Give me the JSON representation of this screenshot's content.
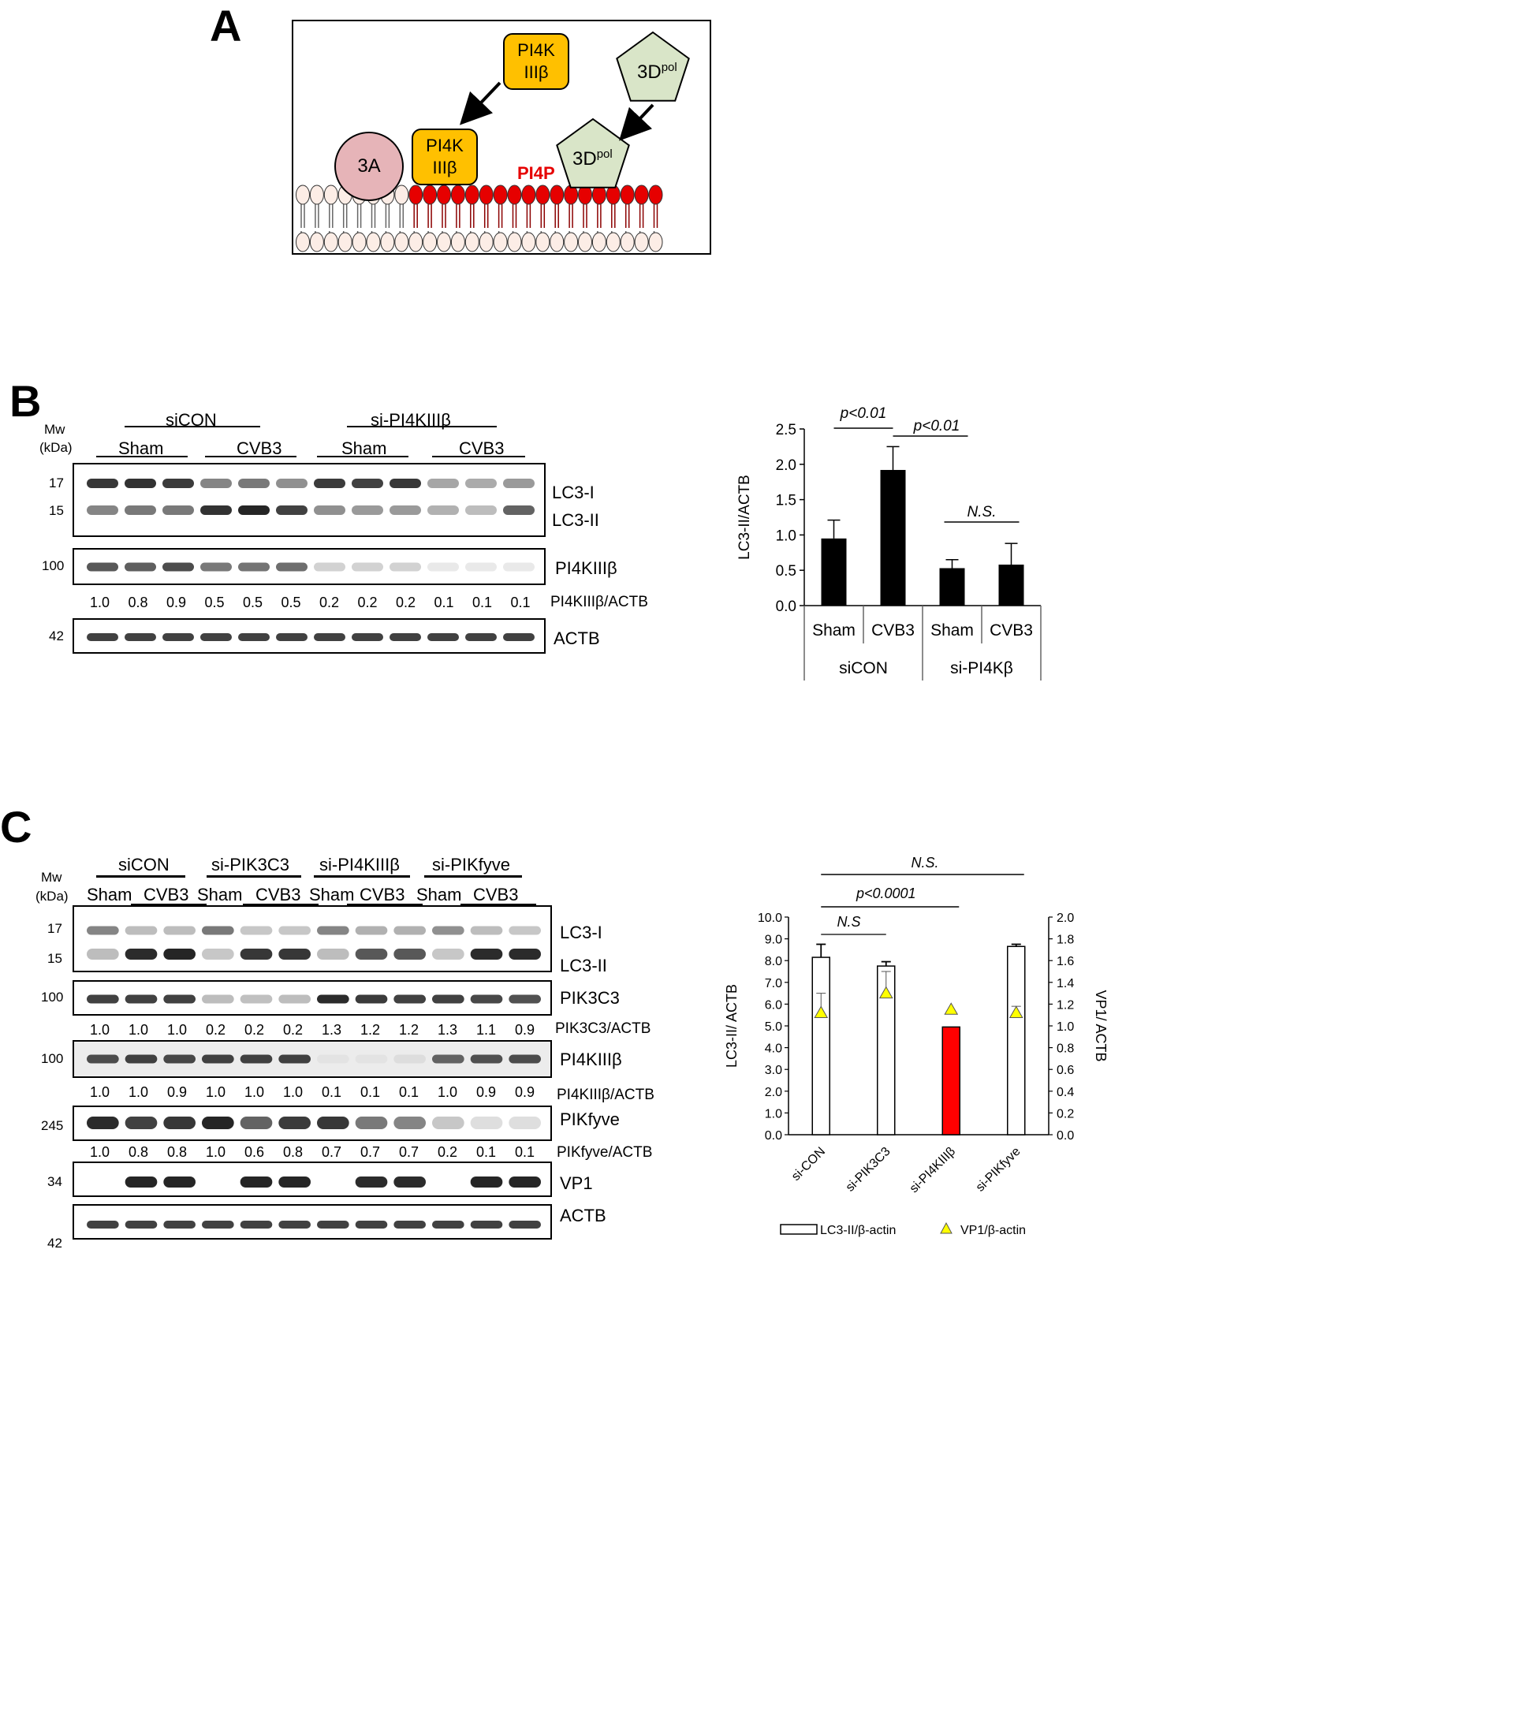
{
  "panels": {
    "a": "A",
    "b": "B",
    "c": "C"
  },
  "panel_a": {
    "pi4k_line1": "PI4K",
    "pi4k_line2": "IIIβ",
    "pol_base": "3D",
    "pol_sup": "pol",
    "protein_3a": "3A",
    "pi4p": "PI4P",
    "colors": {
      "pi4k": "#FFC000",
      "pol": "#D9E5C8",
      "protein_3a": "#E6B4B8",
      "pi4p": "#E60000",
      "lipid": "#FCEDE6"
    }
  },
  "panel_b": {
    "mw_title": "Mw",
    "mw_unit": "(kDa)",
    "group_sicon": "siCON",
    "group_sipi4k": "si-PI4KIIIβ",
    "sham": "Sham",
    "cvb3": "CVB3",
    "mw_17": "17",
    "mw_15": "15",
    "mw_100": "100",
    "mw_42": "42",
    "lc3_i": "LC3-I",
    "lc3_ii": "LC3-II",
    "pi4k_label": "PI4KIIIβ",
    "ratio_label": "PI4KIIIβ/ACTB",
    "ratios": [
      "1.0",
      "0.8",
      "0.9",
      "0.5",
      "0.5",
      "0.5",
      "0.2",
      "0.2",
      "0.2",
      "0.1",
      "0.1",
      "0.1"
    ],
    "actb_label": "ACTB",
    "lc3i_intensity": [
      0.9,
      0.92,
      0.88,
      0.55,
      0.6,
      0.5,
      0.88,
      0.85,
      0.9,
      0.4,
      0.38,
      0.45
    ],
    "lc3ii_intensity": [
      0.55,
      0.6,
      0.6,
      0.92,
      0.98,
      0.85,
      0.5,
      0.45,
      0.45,
      0.35,
      0.3,
      0.7
    ],
    "pi4k_intensity": [
      0.75,
      0.72,
      0.8,
      0.6,
      0.62,
      0.65,
      0.2,
      0.2,
      0.2,
      0.1,
      0.1,
      0.1
    ]
  },
  "chart_b": {
    "type": "bar",
    "ylabel": "LC3-II/ACTB",
    "ylim": [
      0,
      2.5
    ],
    "yticks": [
      "0.0",
      "0.5",
      "1.0",
      "1.5",
      "2.0",
      "2.5"
    ],
    "categories": [
      "Sham",
      "CVB3",
      "Sham",
      "CVB3"
    ],
    "groups": [
      "siCON",
      "si-PI4Kβ"
    ],
    "values": [
      0.95,
      1.92,
      0.53,
      0.58
    ],
    "errors": [
      0.26,
      0.33,
      0.12,
      0.3
    ],
    "sig_1": "p<0.01",
    "sig_2": "p<0.01",
    "sig_3": "N.S."
  },
  "panel_c": {
    "mw_title": "Mw",
    "mw_unit": "(kDa)",
    "groups": [
      "siCON",
      "si-PIK3C3",
      "si-PI4KIIIβ",
      "si-PIKfyve"
    ],
    "sham": "Sham",
    "cvb3": "CVB3",
    "mw_17": "17",
    "mw_15": "15",
    "mw_100a": "100",
    "mw_100b": "100",
    "mw_245": "245",
    "mw_34": "34",
    "mw_42": "42",
    "lc3_i": "LC3-I",
    "lc3_ii": "LC3-II",
    "pik3c3_label": "PIK3C3",
    "pik3c3_ratio_label": "PIK3C3/ACTB",
    "pik3c3_ratios": [
      "1.0",
      "1.0",
      "1.0",
      "0.2",
      "0.2",
      "0.2",
      "1.3",
      "1.2",
      "1.2",
      "1.3",
      "1.1",
      "0.9"
    ],
    "pi4k_label": "PI4KIIIβ",
    "pi4k_ratio_label": "PI4KIIIβ/ACTB",
    "pi4k_ratios": [
      "1.0",
      "1.0",
      "0.9",
      "1.0",
      "1.0",
      "1.0",
      "0.1",
      "0.1",
      "0.1",
      "1.0",
      "0.9",
      "0.9"
    ],
    "pikfyve_label": "PIKfyve",
    "pikfyve_ratio_label": "PIKfyve/ACTB",
    "pikfyve_ratios": [
      "1.0",
      "0.8",
      "0.8",
      "1.0",
      "0.6",
      "0.8",
      "0.7",
      "0.7",
      "0.7",
      "0.2",
      "0.1",
      "0.1"
    ],
    "vp1_label": "VP1",
    "actb_label": "ACTB",
    "lc3i_intensity": [
      0.55,
      0.3,
      0.3,
      0.6,
      0.25,
      0.25,
      0.55,
      0.35,
      0.35,
      0.5,
      0.3,
      0.25
    ],
    "lc3ii_intensity": [
      0.3,
      0.95,
      0.98,
      0.25,
      0.9,
      0.9,
      0.3,
      0.75,
      0.75,
      0.25,
      0.95,
      0.95
    ],
    "pik3c3_intensity": [
      0.85,
      0.85,
      0.85,
      0.3,
      0.28,
      0.3,
      0.95,
      0.88,
      0.85,
      0.85,
      0.82,
      0.78
    ],
    "pi4k_intensity": [
      0.8,
      0.85,
      0.82,
      0.85,
      0.85,
      0.85,
      0.12,
      0.12,
      0.15,
      0.7,
      0.78,
      0.8
    ],
    "pikfyve_intensity": [
      0.95,
      0.85,
      0.9,
      0.98,
      0.7,
      0.88,
      0.9,
      0.6,
      0.55,
      0.25,
      0.15,
      0.15
    ],
    "vp1_intensity": [
      0,
      0.98,
      0.98,
      0,
      0.98,
      0.98,
      0,
      0.95,
      0.95,
      0,
      0.98,
      0.98
    ]
  },
  "chart_c": {
    "type": "bar",
    "ylabel_left": "LC3-II/ ACTB",
    "ylabel_right": "VP1/ ACTB",
    "ylim_left": [
      0,
      10
    ],
    "ylim_right": [
      0,
      2
    ],
    "yticks_left": [
      "0.0",
      "1.0",
      "2.0",
      "3.0",
      "4.0",
      "5.0",
      "6.0",
      "7.0",
      "8.0",
      "9.0",
      "10.0"
    ],
    "yticks_right": [
      "0.0",
      "0.2",
      "0.4",
      "0.6",
      "0.8",
      "1.0",
      "1.2",
      "1.4",
      "1.6",
      "1.8",
      "2.0"
    ],
    "categories": [
      "si-CON",
      "si-PIK3C3",
      "si-PI4KIIIβ",
      "si-PIKfyve"
    ],
    "series": [
      {
        "name": "LC3-II/β-actin",
        "values": [
          8.15,
          7.75,
          4.95,
          8.65
        ],
        "errors": [
          0.6,
          0.2,
          0,
          0.1
        ]
      },
      {
        "name": "VP1/β-actin",
        "values": [
          1.12,
          1.3,
          1.15,
          1.12
        ],
        "errors": [
          0.18,
          0.2,
          0,
          0.06
        ]
      }
    ],
    "highlight_color": "#FF0000",
    "marker_color": "#FFFF00",
    "sig_top": "N.S.",
    "sig_mid": "p<0.0001",
    "sig_low": "N.S"
  }
}
